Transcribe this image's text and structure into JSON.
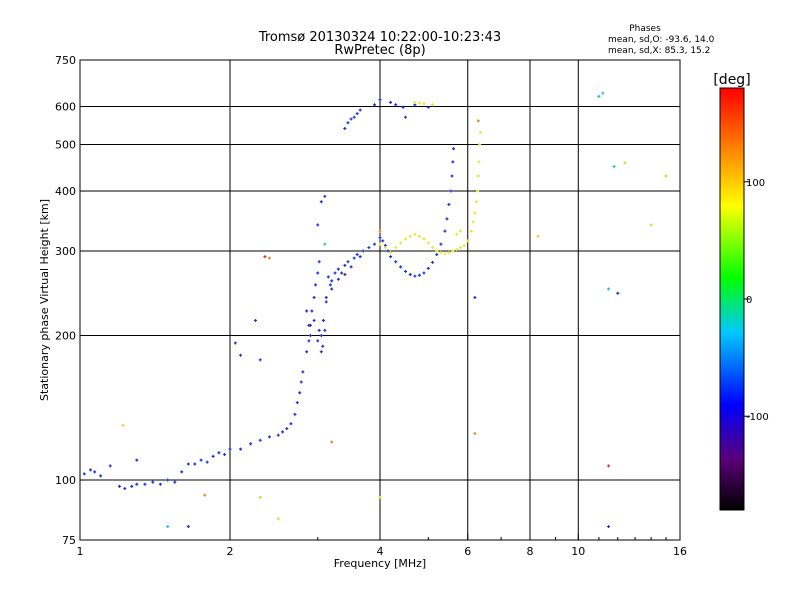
{
  "chart_data": {
    "type": "scatter",
    "title": "Tromsø 20130324 10:22:00-10:23:43",
    "subtitle": "RwPretec (8p)",
    "xlabel": "Frequency [MHz]",
    "ylabel": "Stationary phase Virtual Height [km]",
    "x_scale": "log",
    "y_scale": "log",
    "xlim": [
      1,
      16
    ],
    "ylim": [
      75,
      750
    ],
    "x_ticks": [
      1,
      2,
      4,
      6,
      8,
      10,
      16
    ],
    "y_ticks": [
      75,
      100,
      200,
      300,
      400,
      500,
      600,
      750
    ],
    "x_gridlines": [
      2,
      4,
      6,
      8,
      10
    ],
    "y_gridlines": [
      100,
      200,
      300,
      400,
      500,
      600
    ],
    "grid": true,
    "stats": {
      "heading": "Phases",
      "line_o": "mean, sd,O: -93.6, 14.0",
      "line_x": "mean, sd,X: 85.3, 15.2"
    },
    "colorbar": {
      "label": "[deg]",
      "range": [
        -180,
        180
      ],
      "ticks": [
        -100,
        0,
        100
      ],
      "colors": [
        "#000000",
        "#5a0078",
        "#0000ff",
        "#00c8ff",
        "#00ff00",
        "#ffff00",
        "#ff0000"
      ]
    },
    "series": [
      {
        "color": "#1a35d8",
        "points": [
          [
            1.02,
            103
          ],
          [
            1.05,
            105
          ],
          [
            1.07,
            104
          ],
          [
            1.1,
            102
          ],
          [
            1.15,
            107
          ],
          [
            1.2,
            97
          ],
          [
            1.23,
            96
          ],
          [
            1.27,
            97
          ],
          [
            1.3,
            98
          ],
          [
            1.35,
            98
          ],
          [
            1.4,
            99
          ],
          [
            1.45,
            98
          ],
          [
            1.5,
            100
          ],
          [
            1.55,
            99
          ],
          [
            1.6,
            104
          ],
          [
            1.65,
            108
          ],
          [
            1.7,
            108
          ],
          [
            1.75,
            110
          ],
          [
            1.8,
            109
          ],
          [
            1.85,
            112
          ],
          [
            1.9,
            114
          ],
          [
            1.95,
            113
          ],
          [
            2.0,
            116
          ],
          [
            2.1,
            116
          ],
          [
            2.2,
            119
          ],
          [
            2.3,
            121
          ],
          [
            2.4,
            123
          ],
          [
            2.5,
            124
          ],
          [
            2.55,
            126
          ],
          [
            2.6,
            128
          ],
          [
            2.65,
            131
          ],
          [
            2.7,
            137
          ],
          [
            2.73,
            145
          ],
          [
            2.76,
            152
          ],
          [
            2.78,
            160
          ],
          [
            2.8,
            168
          ],
          [
            1.3,
            110
          ],
          [
            1.65,
            80
          ],
          [
            2.05,
            193
          ],
          [
            2.1,
            182
          ],
          [
            2.25,
            215
          ],
          [
            2.3,
            178
          ],
          [
            2.85,
            185
          ],
          [
            2.88,
            195
          ],
          [
            2.9,
            210
          ],
          [
            2.92,
            225
          ],
          [
            2.95,
            240
          ],
          [
            2.97,
            255
          ],
          [
            3.0,
            270
          ],
          [
            3.02,
            285
          ],
          [
            3.05,
            200
          ],
          [
            3.07,
            190
          ],
          [
            3.1,
            205
          ],
          [
            3.12,
            240
          ],
          [
            3.15,
            265
          ],
          [
            3.18,
            255
          ],
          [
            3.2,
            260
          ],
          [
            3.25,
            270
          ],
          [
            3.3,
            275
          ],
          [
            3.35,
            270
          ],
          [
            3.4,
            280
          ],
          [
            3.45,
            285
          ],
          [
            3.5,
            278
          ],
          [
            3.55,
            290
          ],
          [
            3.6,
            295
          ],
          [
            3.65,
            292
          ],
          [
            3.7,
            300
          ],
          [
            3.8,
            305
          ],
          [
            3.9,
            310
          ],
          [
            4.0,
            320
          ],
          [
            4.05,
            315
          ],
          [
            4.1,
            308
          ],
          [
            4.15,
            300
          ],
          [
            4.2,
            292
          ],
          [
            4.3,
            285
          ],
          [
            4.4,
            278
          ],
          [
            4.5,
            272
          ],
          [
            4.6,
            268
          ],
          [
            4.7,
            266
          ],
          [
            4.8,
            267
          ],
          [
            4.9,
            270
          ],
          [
            5.0,
            276
          ],
          [
            5.1,
            284
          ],
          [
            5.2,
            295
          ],
          [
            5.3,
            310
          ],
          [
            5.4,
            330
          ],
          [
            5.45,
            350
          ],
          [
            5.5,
            375
          ],
          [
            5.55,
            400
          ],
          [
            5.58,
            430
          ],
          [
            5.6,
            460
          ],
          [
            5.62,
            490
          ],
          [
            3.0,
            340
          ],
          [
            3.05,
            380
          ],
          [
            3.1,
            390
          ],
          [
            3.4,
            540
          ],
          [
            3.45,
            555
          ],
          [
            3.5,
            565
          ],
          [
            3.55,
            570
          ],
          [
            3.6,
            580
          ],
          [
            3.65,
            590
          ],
          [
            3.9,
            605
          ],
          [
            4.0,
            620
          ],
          [
            4.2,
            612
          ],
          [
            4.3,
            605
          ],
          [
            4.45,
            598
          ],
          [
            4.5,
            570
          ],
          [
            4.7,
            605
          ],
          [
            5.0,
            598
          ],
          [
            6.2,
            240
          ],
          [
            12.0,
            245
          ],
          [
            11.5,
            80
          ]
        ]
      },
      {
        "color": "#3a2cb0",
        "points": [
          [
            2.85,
            225
          ],
          [
            2.88,
            210
          ],
          [
            2.9,
            200
          ],
          [
            2.95,
            215
          ],
          [
            3.0,
            195
          ],
          [
            3.02,
            205
          ],
          [
            3.05,
            185
          ],
          [
            3.08,
            215
          ],
          [
            3.12,
            235
          ],
          [
            3.2,
            250
          ],
          [
            3.3,
            262
          ],
          [
            3.4,
            268
          ]
        ]
      },
      {
        "color": "#e6e62c",
        "points": [
          [
            4.2,
            298
          ],
          [
            4.3,
            305
          ],
          [
            4.4,
            312
          ],
          [
            4.5,
            318
          ],
          [
            4.6,
            322
          ],
          [
            4.7,
            325
          ],
          [
            4.8,
            322
          ],
          [
            4.9,
            318
          ],
          [
            5.0,
            312
          ],
          [
            5.1,
            305
          ],
          [
            5.2,
            300
          ],
          [
            5.3,
            298
          ],
          [
            5.4,
            296
          ],
          [
            5.5,
            298
          ],
          [
            5.6,
            300
          ],
          [
            5.7,
            302
          ],
          [
            5.8,
            305
          ],
          [
            5.9,
            308
          ],
          [
            6.0,
            315
          ],
          [
            6.1,
            330
          ],
          [
            6.15,
            345
          ],
          [
            6.2,
            360
          ],
          [
            6.25,
            380
          ],
          [
            6.28,
            400
          ],
          [
            6.3,
            430
          ],
          [
            6.32,
            460
          ],
          [
            6.34,
            500
          ],
          [
            6.36,
            530
          ],
          [
            4.7,
            612
          ],
          [
            4.8,
            610
          ],
          [
            4.9,
            608
          ],
          [
            5.1,
            605
          ],
          [
            4.0,
            310
          ],
          [
            4.1,
            305
          ],
          [
            5.8,
            330
          ],
          [
            5.7,
            325
          ]
        ]
      },
      {
        "color": "#e08a2a",
        "points": [
          [
            4.0,
            330
          ],
          [
            6.2,
            125
          ],
          [
            6.3,
            560
          ],
          [
            3.2,
            120
          ],
          [
            2.4,
            290
          ],
          [
            1.78,
            93
          ]
        ]
      },
      {
        "color": "#2ab8d8",
        "points": [
          [
            1.5,
            80
          ],
          [
            11.5,
            250
          ],
          [
            11.8,
            450
          ],
          [
            11.2,
            640
          ],
          [
            11.0,
            630
          ],
          [
            3.1,
            310
          ]
        ]
      },
      {
        "color": "#e0d02a",
        "points": [
          [
            8.3,
            322
          ],
          [
            1.22,
            130
          ],
          [
            2.3,
            92
          ],
          [
            2.5,
            83
          ],
          [
            4.0,
            92
          ],
          [
            12.4,
            458
          ],
          [
            14.0,
            340
          ],
          [
            15.0,
            430
          ]
        ]
      },
      {
        "color": "#d03a2a",
        "points": [
          [
            11.5,
            107
          ],
          [
            2.35,
            292
          ]
        ]
      }
    ]
  }
}
